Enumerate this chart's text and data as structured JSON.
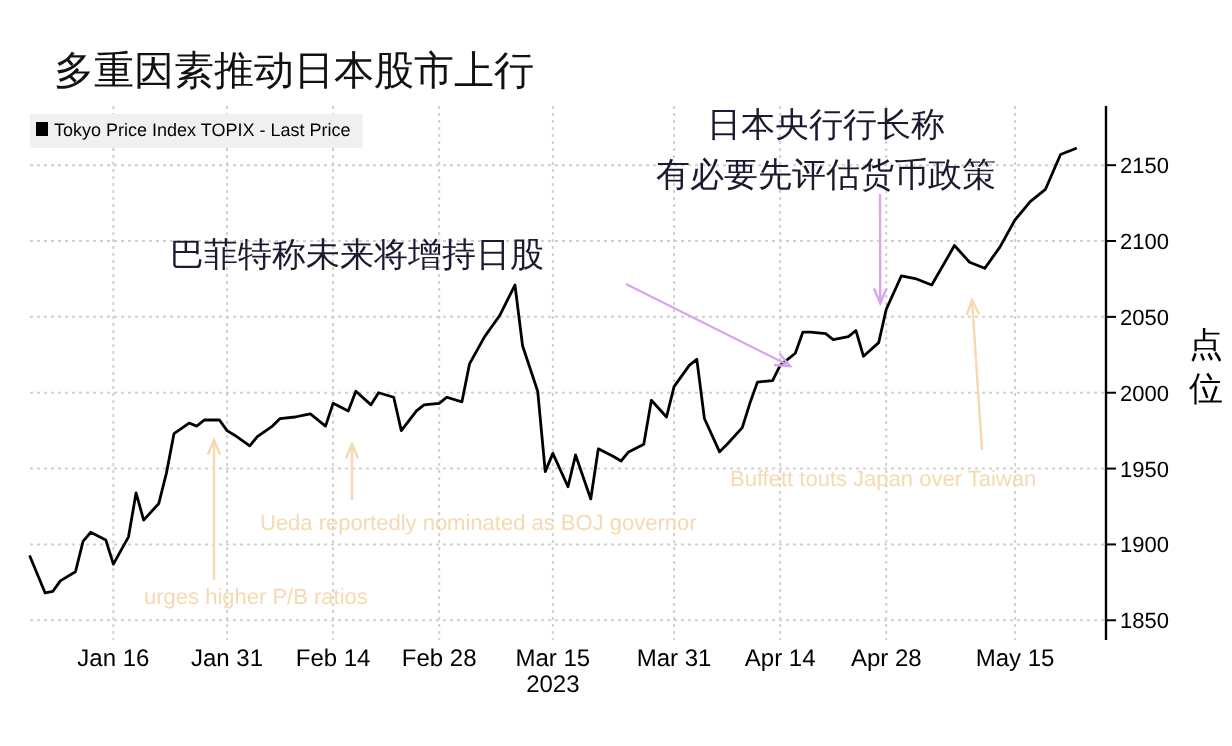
{
  "chart_data": {
    "type": "line",
    "title": "多重因素推动日本股市上行",
    "ylabel": "点位",
    "x": [
      "2023-01-05",
      "2023-01-07",
      "2023-01-08",
      "2023-01-09",
      "2023-01-11",
      "2023-01-12",
      "2023-01-13",
      "2023-01-15",
      "2023-01-16",
      "2023-01-18",
      "2023-01-19",
      "2023-01-20",
      "2023-01-22",
      "2023-01-23",
      "2023-01-24",
      "2023-01-26",
      "2023-01-27",
      "2023-01-28",
      "2023-01-30",
      "2023-01-31",
      "2023-02-01",
      "2023-02-03",
      "2023-02-04",
      "2023-02-06",
      "2023-02-07",
      "2023-02-09",
      "2023-02-10",
      "2023-02-11",
      "2023-02-13",
      "2023-02-14",
      "2023-02-16",
      "2023-02-17",
      "2023-02-19",
      "2023-02-20",
      "2023-02-22",
      "2023-02-23",
      "2023-02-25",
      "2023-02-26",
      "2023-02-28",
      "2023-03-01",
      "2023-03-03",
      "2023-03-04",
      "2023-03-06",
      "2023-03-07",
      "2023-03-08",
      "2023-03-10",
      "2023-03-11",
      "2023-03-13",
      "2023-03-14",
      "2023-03-15",
      "2023-03-17",
      "2023-03-18",
      "2023-03-20",
      "2023-03-21",
      "2023-03-23",
      "2023-03-24",
      "2023-03-25",
      "2023-03-27",
      "2023-03-28",
      "2023-03-30",
      "2023-03-31",
      "2023-04-02",
      "2023-04-03",
      "2023-04-04",
      "2023-04-06",
      "2023-04-07",
      "2023-04-09",
      "2023-04-10",
      "2023-04-11",
      "2023-04-13",
      "2023-04-14",
      "2023-04-16",
      "2023-04-17",
      "2023-04-18",
      "2023-04-20",
      "2023-04-21",
      "2023-04-23",
      "2023-04-24",
      "2023-04-25",
      "2023-04-27",
      "2023-04-28",
      "2023-04-30",
      "2023-05-02",
      "2023-05-04",
      "2023-05-07",
      "2023-05-09",
      "2023-05-11",
      "2023-05-13",
      "2023-05-15",
      "2023-05-17",
      "2023-05-19",
      "2023-05-21",
      "2023-05-23"
    ],
    "series": [
      {
        "name": "Tokyo Price Index TOPIX - Last Price",
        "color": "#000000",
        "values": [
          1892,
          1868,
          1869,
          1876,
          1882,
          1902,
          1908,
          1903,
          1887,
          1905,
          1934,
          1916,
          1927,
          1947,
          1973,
          1980,
          1978,
          1982,
          1982,
          1975,
          1972,
          1965,
          1971,
          1978,
          1983,
          1984,
          1985,
          1986,
          1978,
          1993,
          1988,
          2001,
          1992,
          2000,
          1997,
          1975,
          1988,
          1992,
          1993,
          1997,
          1994,
          2019,
          2037,
          2044,
          2051,
          2071,
          2031,
          2001,
          1948,
          1960,
          1938,
          1959,
          1930,
          1963,
          1958,
          1955,
          1961,
          1966,
          1995,
          1984,
          2004,
          2018,
          2022,
          1983,
          1961,
          1966,
          1977,
          1993,
          2007,
          2008,
          2018,
          2026,
          2040,
          2040,
          2039,
          2035,
          2037,
          2041,
          2024,
          2033,
          2055,
          2077,
          2075,
          2071,
          2097,
          2086,
          2082,
          2096,
          2114,
          2126,
          2134,
          2157,
          2161
        ]
      }
    ],
    "xlim": [
      "2023-01-05",
      "2023-05-27"
    ],
    "xticks": [
      {
        "value": "2023-01-16",
        "label": "Jan 16"
      },
      {
        "value": "2023-01-31",
        "label": "Jan 31"
      },
      {
        "value": "2023-02-14",
        "label": "Feb 14"
      },
      {
        "value": "2023-02-28",
        "label": "Feb 28"
      },
      {
        "value": "2023-03-15",
        "label": "Mar 15\n2023"
      },
      {
        "value": "2023-03-31",
        "label": "Mar 31"
      },
      {
        "value": "2023-04-14",
        "label": "Apr 14"
      },
      {
        "value": "2023-04-28",
        "label": "Apr 28"
      },
      {
        "value": "2023-05-15",
        "label": "May 15"
      }
    ],
    "ylim": [
      1837,
      2189
    ],
    "yticks": [
      1850,
      1900,
      1950,
      2000,
      2050,
      2100,
      2150
    ],
    "grid": true,
    "legend": "top left",
    "line_style": "solid",
    "marker": "none",
    "annotations": [
      "巴菲特称未来将增持日股",
      {
        "text": "日本央行行长称有必要先评估货币政策",
        "x": "2023-04-28",
        "y": 2055
      },
      "urges higher P/B ratios",
      "Ueda reportedly nominated as BOJ governor",
      "Buffett touts Japan over Taiwan"
    ]
  }
}
